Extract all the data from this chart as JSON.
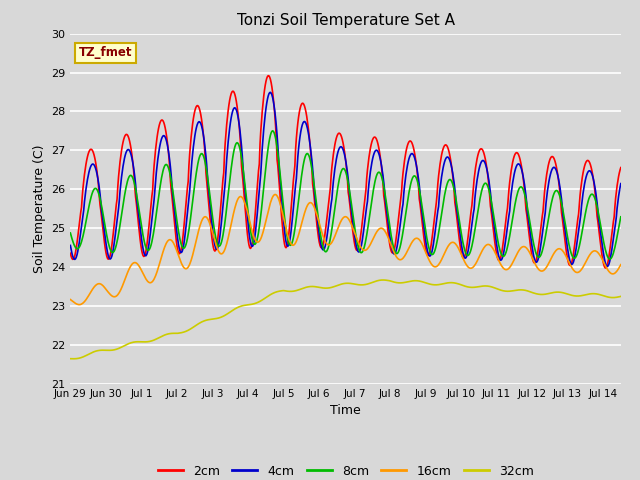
{
  "title": "Tonzi Soil Temperature Set A",
  "xlabel": "Time",
  "ylabel": "Soil Temperature (C)",
  "ylim": [
    21.0,
    30.0
  ],
  "yticks": [
    21.0,
    22.0,
    23.0,
    24.0,
    25.0,
    26.0,
    27.0,
    28.0,
    29.0,
    30.0
  ],
  "xtick_labels": [
    "Jun 29",
    "Jun 30",
    "Jul 1",
    "Jul 2",
    "Jul 3",
    "Jul 4",
    "Jul 5",
    "Jul 6",
    "Jul 7",
    "Jul 8",
    "Jul 9",
    "Jul 10",
    "Jul 11",
    "Jul 12",
    "Jul 13",
    "Jul 14"
  ],
  "colors": {
    "2cm": "#ff0000",
    "4cm": "#0000cc",
    "8cm": "#00bb00",
    "16cm": "#ff9900",
    "32cm": "#cccc00"
  },
  "annotation_text": "TZ_fmet",
  "annotation_color": "#880000",
  "annotation_bg": "#ffffcc",
  "annotation_edge": "#ccaa00",
  "fig_bg": "#d8d8d8",
  "plot_bg": "#d8d8d8",
  "grid_color": "#ffffff",
  "line_width": 1.2,
  "n_points": 744
}
